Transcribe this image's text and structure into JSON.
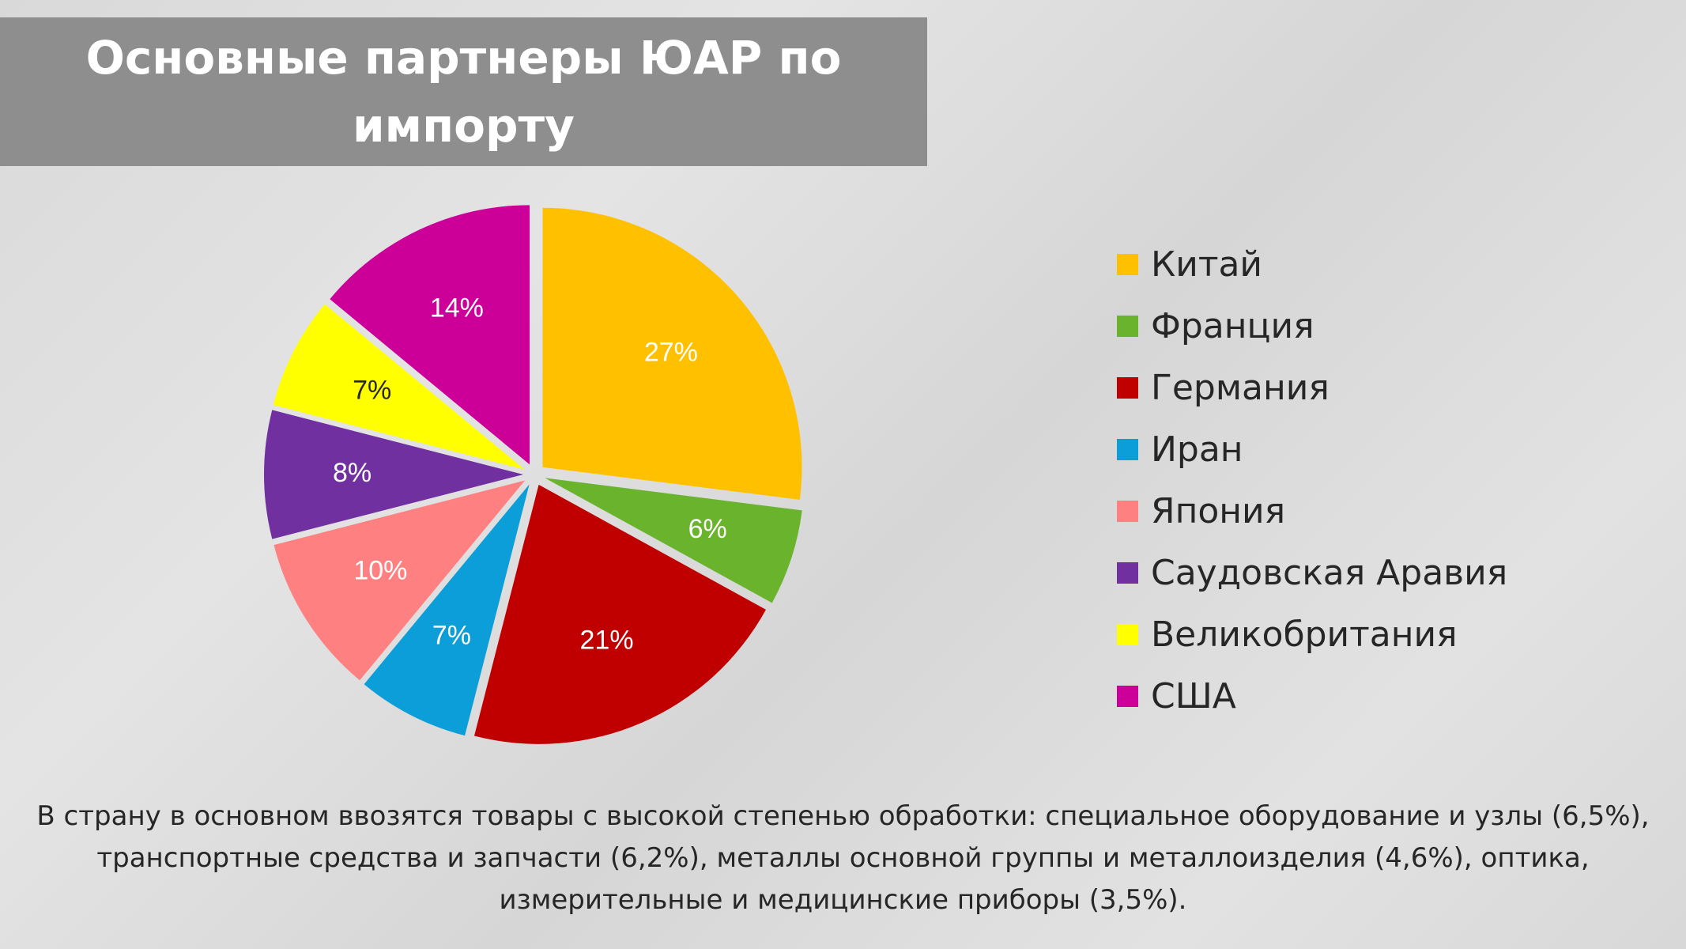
{
  "slide": {
    "title": "Основные партнеры ЮАР по импорту",
    "footnote": "В страну в основном ввозятся товары с высокой степенью обработки: специальное оборудование и узлы (6,5%), транспортные средства и запчасти (6,2%), металлы основной группы и металлоизделия (4,6%), оптика, измерительные и медицинские приборы (3,5%)."
  },
  "chart_data": {
    "type": "pie",
    "title": "",
    "legend_position": "right",
    "categories": [
      "Китай",
      "Франция",
      "Германия",
      "Иран",
      "Япония",
      "Саудовская Аравия",
      "Великобритания",
      "США"
    ],
    "values": [
      27,
      6,
      21,
      7,
      10,
      8,
      7,
      14
    ],
    "data_labels": [
      "27%",
      "6%",
      "21%",
      "7%",
      "10%",
      "8%",
      "7%",
      "14%"
    ],
    "colors": [
      "#FFC000",
      "#6AB42D",
      "#C00000",
      "#0C9ED8",
      "#FF8080",
      "#7030A0",
      "#FFFF00",
      "#CC0099"
    ],
    "label_colors": [
      "#ffffff",
      "#ffffff",
      "#ffffff",
      "#ffffff",
      "#ffffff",
      "#ffffff",
      "#262626",
      "#ffffff"
    ],
    "exploded": true
  }
}
